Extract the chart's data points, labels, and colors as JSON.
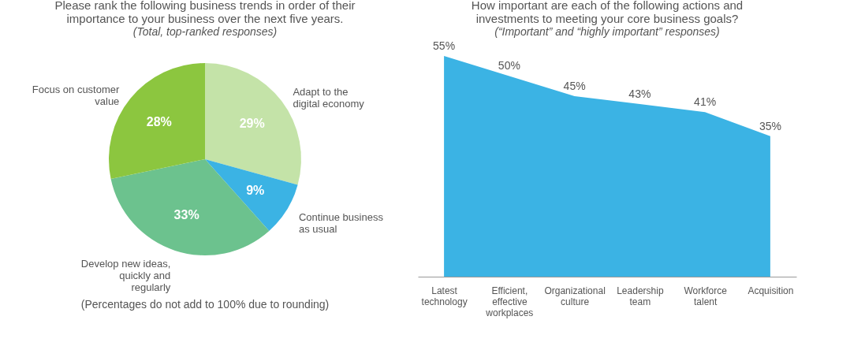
{
  "chart_data": [
    {
      "type": "pie",
      "title": "Please rank the following business trends in order of their importance to your business over the next five years.",
      "subtitle": "(Total, top-ranked responses)",
      "categories": [
        "Adapt to the digital economy",
        "Continue business as usual",
        "Develop new ideas, quickly and regularly",
        "Focus on customer value"
      ],
      "values": [
        29,
        9,
        33,
        28
      ],
      "value_labels": [
        "29%",
        "9%",
        "33%",
        "28%"
      ],
      "colors": [
        "#c4e3a8",
        "#3bb3e4",
        "#6cc28e",
        "#8cc63f"
      ],
      "annotations": [
        "(Percentages do not add to 100% due to rounding)"
      ]
    },
    {
      "type": "area",
      "title": "How important are each of the following actions and investments to meeting your core business goals?",
      "subtitle": "(“Important” and “highly important” responses)",
      "categories": [
        "Latest technology",
        "Efficient, effective workplaces",
        "Organizational culture",
        "Leadership team",
        "Workforce talent",
        "Acquisition"
      ],
      "color": "#3bb3e4",
      "values": [
        55,
        50,
        45,
        43,
        41,
        35
      ],
      "value_labels": [
        "55%",
        "50%",
        "45%",
        "43%",
        "41%",
        "35%"
      ]
    }
  ]
}
